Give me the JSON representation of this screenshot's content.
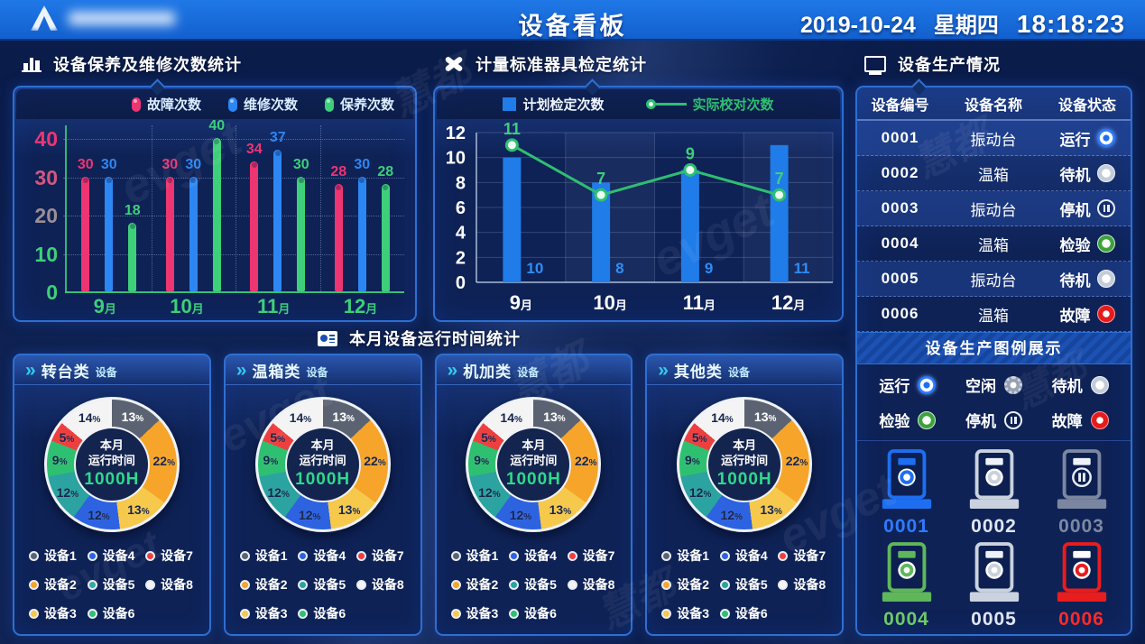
{
  "header": {
    "title": "设备看板",
    "date": "2019-10-24",
    "weekday": "星期四",
    "time": "18:18:23"
  },
  "watermark": {
    "texts": [
      "evget",
      "慧都"
    ]
  },
  "sections": {
    "maintenance": {
      "title": "设备保养及维修次数统计"
    },
    "calibration": {
      "title": "计量标准器具检定统计"
    },
    "production": {
      "title": "设备生产情况"
    },
    "runtime": {
      "title": "本月设备运行时间统计"
    }
  },
  "production_table": {
    "headers": [
      "设备编号",
      "设备名称",
      "设备状态"
    ],
    "rows": [
      {
        "code": "0001",
        "name": "振动台",
        "status": "运行",
        "icon": "run"
      },
      {
        "code": "0002",
        "name": "温箱",
        "status": "待机",
        "icon": "standby"
      },
      {
        "code": "0003",
        "name": "振动台",
        "status": "停机",
        "icon": "stop"
      },
      {
        "code": "0004",
        "name": "温箱",
        "status": "检验",
        "icon": "inspect"
      },
      {
        "code": "0005",
        "name": "振动台",
        "status": "待机",
        "icon": "standby"
      },
      {
        "code": "0006",
        "name": "温箱",
        "status": "故障",
        "icon": "fault"
      }
    ]
  },
  "status_legend": {
    "title": "设备生产图例展示",
    "items": [
      {
        "label": "运行",
        "icon": "run"
      },
      {
        "label": "空闲",
        "icon": "idle"
      },
      {
        "label": "待机",
        "icon": "standby"
      },
      {
        "label": "检验",
        "icon": "inspect"
      },
      {
        "label": "停机",
        "icon": "stop"
      },
      {
        "label": "故障",
        "icon": "fault"
      }
    ]
  },
  "machines": [
    {
      "code": "0001",
      "symbol": "run",
      "color": "#1e6ef0",
      "slot": "#1e6ef0",
      "label_color": "#2f7bff"
    },
    {
      "code": "0002",
      "symbol": "standby",
      "color": "#c9d2de",
      "slot": "#eef2f8",
      "label_color": "#dfe6f2"
    },
    {
      "code": "0003",
      "symbol": "stop",
      "color": "#7b86a0",
      "slot": "#eef2f8",
      "label_color": "#7d89a3"
    },
    {
      "code": "0004",
      "symbol": "inspect",
      "color": "#5fb75a",
      "slot": "#5fb75a",
      "label_color": "#6ec96a"
    },
    {
      "code": "0005",
      "symbol": "standby",
      "color": "#c9d2de",
      "slot": "#eef2f8",
      "label_color": "#dfe6f2"
    },
    {
      "code": "0006",
      "symbol": "fault",
      "color": "#e81d1d",
      "slot": "#ffffff",
      "label_color": "#ff2a2a"
    }
  ],
  "chart_data": [
    {
      "type": "bar",
      "title": "设备保养及维修次数统计",
      "categories": [
        "9月",
        "10月",
        "11月",
        "12月"
      ],
      "series": [
        {
          "name": "故障次数",
          "color": "#ed3572",
          "values": [
            30,
            30,
            34,
            28
          ]
        },
        {
          "name": "维修次数",
          "color": "#2d87f2",
          "values": [
            30,
            30,
            37,
            30
          ]
        },
        {
          "name": "保养次数",
          "color": "#3ecf7a",
          "values": [
            18,
            40,
            30,
            28
          ]
        }
      ],
      "ylim": [
        0,
        40
      ],
      "yticks": [
        {
          "v": 0,
          "color": "#3ecf7a"
        },
        {
          "v": 10,
          "color": "#3ecf7a"
        },
        {
          "v": 20,
          "color": "#9b8f96"
        },
        {
          "v": 30,
          "color": "#d15880"
        },
        {
          "v": 40,
          "color": "#ed3572"
        }
      ],
      "grid": true,
      "legend_position": "top"
    },
    {
      "type": "bar+line",
      "title": "计量标准器具检定统计",
      "categories": [
        "9月",
        "10月",
        "11月",
        "12月"
      ],
      "bar_series": {
        "name": "计划检定次数",
        "color": "#1f7ce8",
        "values": [
          10,
          8,
          9,
          11
        ]
      },
      "line_series": {
        "name": "实际校对次数",
        "color": "#2fbf71",
        "values": [
          11,
          7,
          9,
          7
        ]
      },
      "ylim": [
        0,
        12
      ],
      "yticks": [
        0,
        2,
        4,
        6,
        8,
        10,
        12
      ],
      "grid": true,
      "legend_position": "top"
    },
    {
      "type": "donut",
      "title": "本月设备运行时间统计",
      "panels": [
        {
          "name": "转台类",
          "suffix": "设备"
        },
        {
          "name": "温箱类",
          "suffix": "设备"
        },
        {
          "name": "机加类",
          "suffix": "设备"
        },
        {
          "name": "其他类",
          "suffix": "设备"
        }
      ],
      "center_label": {
        "line1": "本月",
        "line2": "运行时间",
        "hours": "1000H"
      },
      "slices": [
        {
          "label": "设备1",
          "pct": 13,
          "color": "#5b6372",
          "text_color": "#ffffff"
        },
        {
          "label": "设备2",
          "pct": 22,
          "color": "#f6a52a",
          "text_color": "#17264d"
        },
        {
          "label": "设备3",
          "pct": 13,
          "color": "#f6c84c",
          "text_color": "#17264d"
        },
        {
          "label": "设备4",
          "pct": 12,
          "color": "#2d62e0",
          "text_color": "#17264d"
        },
        {
          "label": "设备5",
          "pct": 12,
          "color": "#2ba3a0",
          "text_color": "#17264d"
        },
        {
          "label": "设备6",
          "pct": 9,
          "color": "#2fbf71",
          "text_color": "#17264d"
        },
        {
          "label": "设备7",
          "pct": 5,
          "color": "#ee3f3f",
          "text_color": "#17264d"
        },
        {
          "label": "设备8",
          "pct": 14,
          "color": "#f4f4f4",
          "text_color": "#17264d"
        }
      ]
    }
  ]
}
